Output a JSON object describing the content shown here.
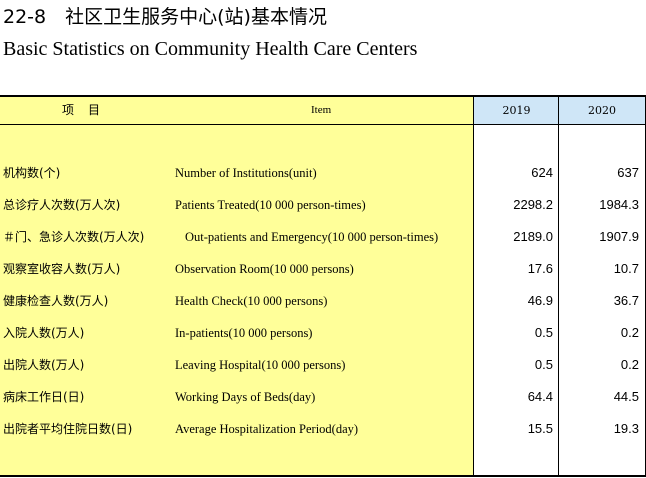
{
  "title_zh": "22-8　社区卫生服务中心(站)基本情况",
  "title_en": "Basic Statistics on Community Health Care Centers",
  "header": {
    "item_zh": "项目",
    "item_en": "Item",
    "year1": "2019",
    "year2": "2020"
  },
  "rows": [
    {
      "zh": "机构数(个)",
      "en": "Number of Institutions(unit)",
      "v2019": "624",
      "v2020": "637"
    },
    {
      "zh": "总诊疗人次数(万人次)",
      "en": "Patients Treated(10 000 person-times)",
      "v2019": "2298.2",
      "v2020": "1984.3"
    },
    {
      "zh": "＃门、急诊人次数(万人次)",
      "en": "Out-patients and Emergency(10 000 person-times)",
      "v2019": "2189.0",
      "v2020": "1907.9"
    },
    {
      "zh": "观察室收容人数(万人)",
      "en": "Observation Room(10 000 persons)",
      "v2019": "17.6",
      "v2020": "10.7"
    },
    {
      "zh": "健康检查人数(万人)",
      "en": "Health Check(10 000 persons)",
      "v2019": "46.9",
      "v2020": "36.7"
    },
    {
      "zh": "入院人数(万人)",
      "en": "In-patients(10 000 persons)",
      "v2019": "0.5",
      "v2020": "0.2"
    },
    {
      "zh": "出院人数(万人)",
      "en": "Leaving Hospital(10 000 persons)",
      "v2019": "0.5",
      "v2020": "0.2"
    },
    {
      "zh": "病床工作日(日)",
      "en": "Working Days of Beds(day)",
      "v2019": "64.4",
      "v2020": "44.5"
    },
    {
      "zh": "出院者平均住院日数(日)",
      "en": "Average Hospitalization Period(day)",
      "v2019": "15.5",
      "v2020": "19.3"
    }
  ]
}
